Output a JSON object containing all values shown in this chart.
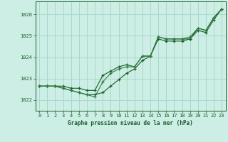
{
  "title": "Graphe pression niveau de la mer (hPa)",
  "background_color": "#cceee4",
  "grid_color": "#a8d8cc",
  "line_color1": "#1a5c2a",
  "line_color2": "#1a5c2a",
  "line_color3": "#2e7d40",
  "xlim": [
    -0.5,
    23.5
  ],
  "ylim": [
    1021.5,
    1026.6
  ],
  "yticks": [
    1022,
    1023,
    1024,
    1025,
    1026
  ],
  "xticks": [
    0,
    1,
    2,
    3,
    4,
    5,
    6,
    7,
    8,
    9,
    10,
    11,
    12,
    13,
    14,
    15,
    16,
    17,
    18,
    19,
    20,
    21,
    22,
    23
  ],
  "series1": [
    1022.65,
    1022.65,
    1022.65,
    1022.65,
    1022.55,
    1022.55,
    1022.45,
    1022.45,
    1023.15,
    1023.35,
    1023.55,
    1023.65,
    1023.55,
    1024.05,
    1024.05,
    1024.95,
    1024.85,
    1024.85,
    1024.85,
    1024.85,
    1025.35,
    1025.25,
    1025.85,
    1026.25
  ],
  "series2": [
    1022.65,
    1022.65,
    1022.65,
    1022.55,
    1022.45,
    1022.35,
    1022.25,
    1022.25,
    1022.35,
    1022.65,
    1022.95,
    1023.25,
    1023.45,
    1023.85,
    1024.05,
    1024.85,
    1024.75,
    1024.75,
    1024.75,
    1024.85,
    1025.25,
    1025.15,
    1025.75,
    1026.25
  ],
  "series3": [
    1022.65,
    1022.65,
    1022.65,
    1022.55,
    1022.45,
    1022.35,
    1022.25,
    1022.15,
    1022.85,
    1023.25,
    1023.45,
    1023.55,
    1023.55,
    1024.05,
    1024.05,
    1024.95,
    1024.85,
    1024.85,
    1024.85,
    1024.95,
    1025.35,
    1025.25,
    1025.85,
    1026.25
  ]
}
